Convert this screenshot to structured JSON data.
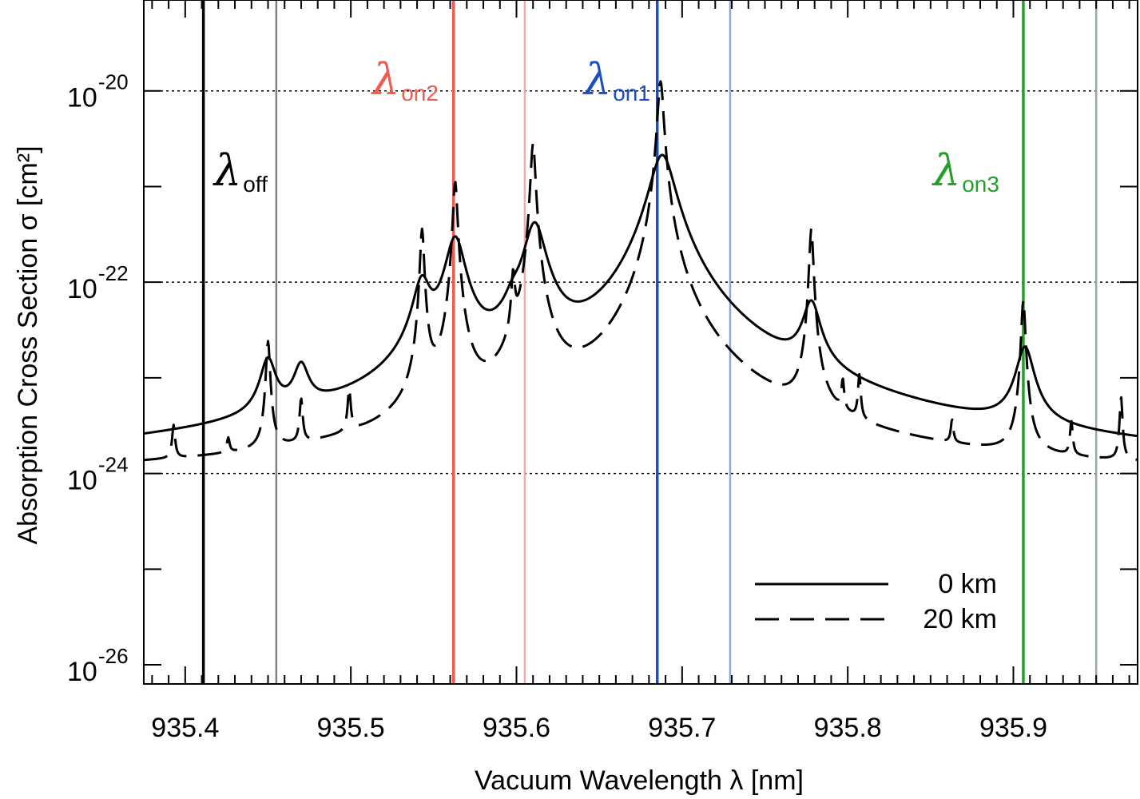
{
  "chart_data": {
    "type": "line",
    "title": "",
    "xlabel": "Vacuum Wavelength λ [nm]",
    "ylabel": "Absorption Cross Section σ [cm²]",
    "xlim": [
      935.375,
      935.975
    ],
    "ylim_log10": [
      -26.2,
      -19.05
    ],
    "x_ticks": [
      {
        "value": 935.4,
        "label": "935.4"
      },
      {
        "value": 935.5,
        "label": "935.5"
      },
      {
        "value": 935.6,
        "label": "935.6"
      },
      {
        "value": 935.7,
        "label": "935.7"
      },
      {
        "value": 935.8,
        "label": "935.8"
      },
      {
        "value": 935.9,
        "label": "935.9"
      }
    ],
    "y_ticks": [
      {
        "exp": -20,
        "label": "-20",
        "base": "10"
      },
      {
        "exp": -22,
        "label": "-22",
        "base": "10"
      },
      {
        "exp": -24,
        "label": "-24",
        "base": "10"
      },
      {
        "exp": -26,
        "label": "-26",
        "base": "10"
      }
    ],
    "dotted_gridlines_exp": [
      -20,
      -22,
      -24
    ],
    "background": -24.05,
    "wavelength_markers": [
      {
        "id": "off",
        "symbol": "λ",
        "subscript": "off",
        "primary": 935.411,
        "secondary": 935.455,
        "color": "#000000",
        "secondary_color": "#808080"
      },
      {
        "id": "on2",
        "symbol": "λ",
        "subscript": "on2",
        "primary": 935.562,
        "secondary": 935.605,
        "color": "#f05a50",
        "secondary_color": "#f7a8a8"
      },
      {
        "id": "on1",
        "symbol": "λ",
        "subscript": "on1",
        "primary": 935.685,
        "secondary": 935.729,
        "color": "#1a4fc4",
        "secondary_color": "#8ea6d8"
      },
      {
        "id": "on3",
        "symbol": "λ",
        "subscript": "on3",
        "primary": 935.906,
        "secondary": 935.95,
        "color": "#22a02a",
        "secondary_color": "#9aaa9a"
      }
    ],
    "series": [
      {
        "name": "0 km",
        "style": "solid",
        "lines": [
          {
            "x0": 935.45,
            "peak": -22.93,
            "w": 0.0045
          },
          {
            "x0": 935.47,
            "peak": -23.05,
            "w": 0.0045
          },
          {
            "x0": 935.543,
            "peak": -22.05,
            "w": 0.005
          },
          {
            "x0": 935.563,
            "peak": -21.55,
            "w": 0.0055
          },
          {
            "x0": 935.598,
            "peak": -22.65,
            "w": 0.005
          },
          {
            "x0": 935.611,
            "peak": -21.4,
            "w": 0.006
          },
          {
            "x0": 935.688,
            "peak": -20.67,
            "w": 0.007
          },
          {
            "x0": 935.778,
            "peak": -22.3,
            "w": 0.005
          },
          {
            "x0": 935.907,
            "peak": -22.75,
            "w": 0.005
          }
        ]
      },
      {
        "name": "20 km",
        "style": "dashed",
        "lines": [
          {
            "x0": 935.393,
            "peak": -23.75,
            "w": 0.0009
          },
          {
            "x0": 935.426,
            "peak": -24.15,
            "w": 0.0009
          },
          {
            "x0": 935.45,
            "peak": -22.65,
            "w": 0.0011
          },
          {
            "x0": 935.47,
            "peak": -23.4,
            "w": 0.0009
          },
          {
            "x0": 935.499,
            "peak": -23.3,
            "w": 0.0009
          },
          {
            "x0": 935.543,
            "peak": -21.45,
            "w": 0.0011
          },
          {
            "x0": 935.563,
            "peak": -20.95,
            "w": 0.0012
          },
          {
            "x0": 935.598,
            "peak": -22.0,
            "w": 0.001
          },
          {
            "x0": 935.61,
            "peak": -20.55,
            "w": 0.0013
          },
          {
            "x0": 935.687,
            "peak": -19.9,
            "w": 0.0016
          },
          {
            "x0": 935.778,
            "peak": -21.45,
            "w": 0.0011
          },
          {
            "x0": 935.797,
            "peak": -23.3,
            "w": 0.0008
          },
          {
            "x0": 935.807,
            "peak": -23.15,
            "w": 0.0008
          },
          {
            "x0": 935.863,
            "peak": -23.8,
            "w": 0.0008
          },
          {
            "x0": 935.906,
            "peak": -22.2,
            "w": 0.0011
          },
          {
            "x0": 935.935,
            "peak": -23.7,
            "w": 0.0008
          },
          {
            "x0": 935.965,
            "peak": -23.3,
            "w": 0.0008
          }
        ]
      }
    ],
    "legend": {
      "placement": "bottom-right",
      "entries": [
        {
          "label": "0 km",
          "style": "solid"
        },
        {
          "label": "20 km",
          "style": "dashed"
        }
      ]
    }
  }
}
